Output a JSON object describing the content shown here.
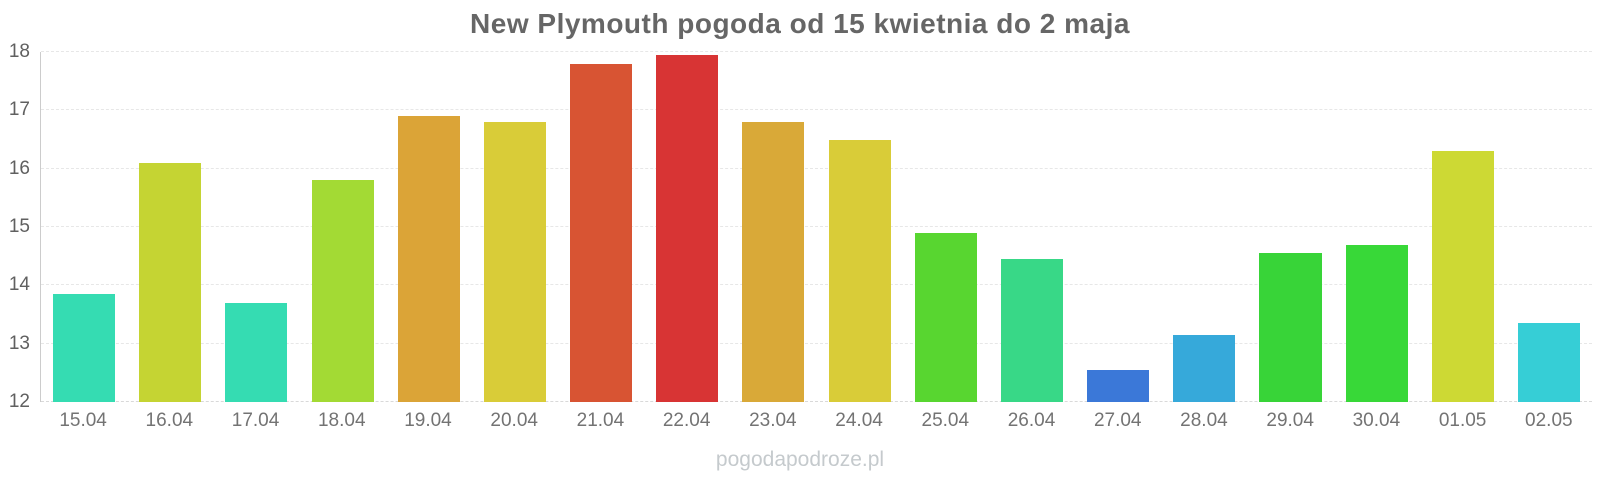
{
  "title": "New Plymouth pogoda od 15 kwietnia do 2 maja",
  "watermark": "pogodapodroze.pl",
  "chart_data": {
    "type": "bar",
    "title": "New Plymouth pogoda od 15 kwietnia do 2 maja",
    "categories": [
      "15.04",
      "16.04",
      "17.04",
      "18.04",
      "19.04",
      "20.04",
      "21.04",
      "22.04",
      "23.04",
      "24.04",
      "25.04",
      "26.04",
      "27.04",
      "28.04",
      "29.04",
      "30.04",
      "01.05",
      "02.05"
    ],
    "values": [
      13.85,
      16.1,
      13.7,
      15.8,
      16.9,
      16.8,
      17.8,
      17.95,
      16.8,
      16.5,
      14.9,
      14.45,
      12.55,
      13.15,
      14.55,
      14.7,
      16.3,
      13.35
    ],
    "bar_colors": [
      "#35dcb2",
      "#c5d433",
      "#35dcb2",
      "#a3da34",
      "#dba437",
      "#d9cc38",
      "#d85433",
      "#d83434",
      "#d9a938",
      "#d9cc38",
      "#58d630",
      "#38d887",
      "#3b78d8",
      "#36a9da",
      "#38d438",
      "#38d838",
      "#cdd934",
      "#36ced6"
    ],
    "xlabel": "",
    "ylabel": "",
    "ylim": [
      12,
      18
    ],
    "yticks": [
      12,
      13,
      14,
      15,
      16,
      17,
      18
    ],
    "grid": "horizontal-dashed",
    "legend": "none"
  },
  "style": {
    "title_color": "#666666",
    "y_label_color": "#606060",
    "x_label_color": "#737373",
    "gridline_color": "#e7e7e7",
    "axis_line_color": "#cccccc",
    "watermark_color": "#c5cacd",
    "background": "#ffffff"
  }
}
